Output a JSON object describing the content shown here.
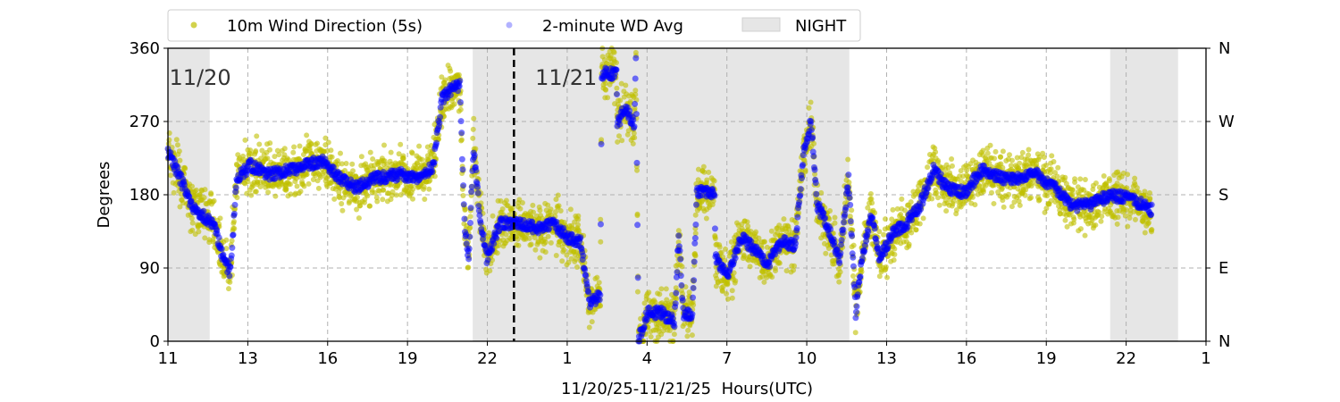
{
  "chart_data": {
    "type": "scatter",
    "xlabel": "11/20/25-11/21/25  Hours(UTC)",
    "ylabel": "Degrees",
    "xlim": [
      0,
      39
    ],
    "ylim": [
      0,
      360
    ],
    "x_unit": "hours since start of plot",
    "x_ticks": [
      0,
      3,
      6,
      9,
      12,
      15,
      18,
      21,
      24,
      27,
      30,
      33,
      36,
      39
    ],
    "x_tick_labels": [
      "11",
      "13",
      "16",
      "19",
      "22",
      "1",
      "4",
      "7",
      "10",
      "13",
      "16",
      "19",
      "22",
      "1"
    ],
    "y_ticks": [
      0,
      90,
      180,
      270,
      360
    ],
    "y_tick_labels": [
      "0",
      "90",
      "180",
      "270",
      "360"
    ],
    "y2_tick_labels": [
      "N",
      "E",
      "S",
      "W",
      "N"
    ],
    "grid": true,
    "legend_placement": "top",
    "legend": [
      "10m Wind Direction (5s)",
      "2-minute WD Avg",
      "NIGHT"
    ],
    "day_labels": [
      {
        "text": "11/20",
        "x": 0.05
      },
      {
        "text": "11/21",
        "x": 13.8
      }
    ],
    "day_boundary_x": 13.0,
    "night_periods": [
      [
        0,
        1.57
      ],
      [
        11.45,
        25.6
      ],
      [
        35.4,
        37.95
      ]
    ],
    "colors": {
      "wd5s": "#bfbf00",
      "wd2min": "#0000ff",
      "night": "#e6e6e6"
    },
    "series": [
      {
        "name": "2-minute WD Avg (approx. trace)",
        "points": [
          [
            0,
            233
          ],
          [
            0.4,
            205
          ],
          [
            0.9,
            167
          ],
          [
            1.24,
            156
          ],
          [
            1.74,
            145
          ],
          [
            2.08,
            101
          ],
          [
            2.35,
            85
          ],
          [
            2.58,
            200
          ],
          [
            3.09,
            216
          ],
          [
            3.76,
            205
          ],
          [
            4.77,
            211
          ],
          [
            5.77,
            222
          ],
          [
            6.44,
            200
          ],
          [
            7.11,
            189
          ],
          [
            7.79,
            200
          ],
          [
            8.79,
            205
          ],
          [
            9.46,
            200
          ],
          [
            9.97,
            216
          ],
          [
            10.3,
            298
          ],
          [
            10.64,
            310
          ],
          [
            10.97,
            315
          ],
          [
            11.14,
            145
          ],
          [
            11.3,
            101
          ],
          [
            11.48,
            238
          ],
          [
            11.71,
            156
          ],
          [
            11.98,
            101
          ],
          [
            12.48,
            145
          ],
          [
            12.99,
            145
          ],
          [
            13.83,
            139
          ],
          [
            14.5,
            145
          ],
          [
            15.0,
            128
          ],
          [
            15.5,
            123
          ],
          [
            15.84,
            46
          ],
          [
            16.24,
            57
          ],
          [
            16.3,
            329
          ],
          [
            16.85,
            329
          ],
          [
            16.88,
            266
          ],
          [
            17.18,
            288
          ],
          [
            17.52,
            266
          ],
          [
            17.58,
            353
          ],
          [
            17.68,
            2
          ],
          [
            18.02,
            35
          ],
          [
            18.52,
            35
          ],
          [
            19.03,
            24
          ],
          [
            19.19,
            132
          ],
          [
            19.36,
            35
          ],
          [
            19.7,
            30
          ],
          [
            19.87,
            183
          ],
          [
            20.54,
            183
          ],
          [
            20.57,
            101
          ],
          [
            21.04,
            79
          ],
          [
            21.54,
            128
          ],
          [
            22.05,
            112
          ],
          [
            22.55,
            95
          ],
          [
            23.05,
            123
          ],
          [
            23.56,
            117
          ],
          [
            23.89,
            233
          ],
          [
            24.16,
            271
          ],
          [
            24.4,
            167
          ],
          [
            24.73,
            145
          ],
          [
            25.23,
            101
          ],
          [
            25.57,
            200
          ],
          [
            25.84,
            35
          ],
          [
            26.07,
            101
          ],
          [
            26.41,
            156
          ],
          [
            26.74,
            101
          ],
          [
            27.25,
            134
          ],
          [
            27.75,
            145
          ],
          [
            28.26,
            167
          ],
          [
            28.76,
            211
          ],
          [
            29.26,
            189
          ],
          [
            29.93,
            183
          ],
          [
            30.6,
            211
          ],
          [
            31.28,
            200
          ],
          [
            31.95,
            200
          ],
          [
            32.62,
            205
          ],
          [
            33.29,
            189
          ],
          [
            33.96,
            167
          ],
          [
            34.63,
            167
          ],
          [
            35.3,
            178
          ],
          [
            35.97,
            178
          ],
          [
            36.98,
            161
          ]
        ]
      },
      {
        "name": "10m Wind Direction (5s)",
        "note": "scattered around the 2-minute average, roughly ±25 degrees"
      }
    ]
  }
}
